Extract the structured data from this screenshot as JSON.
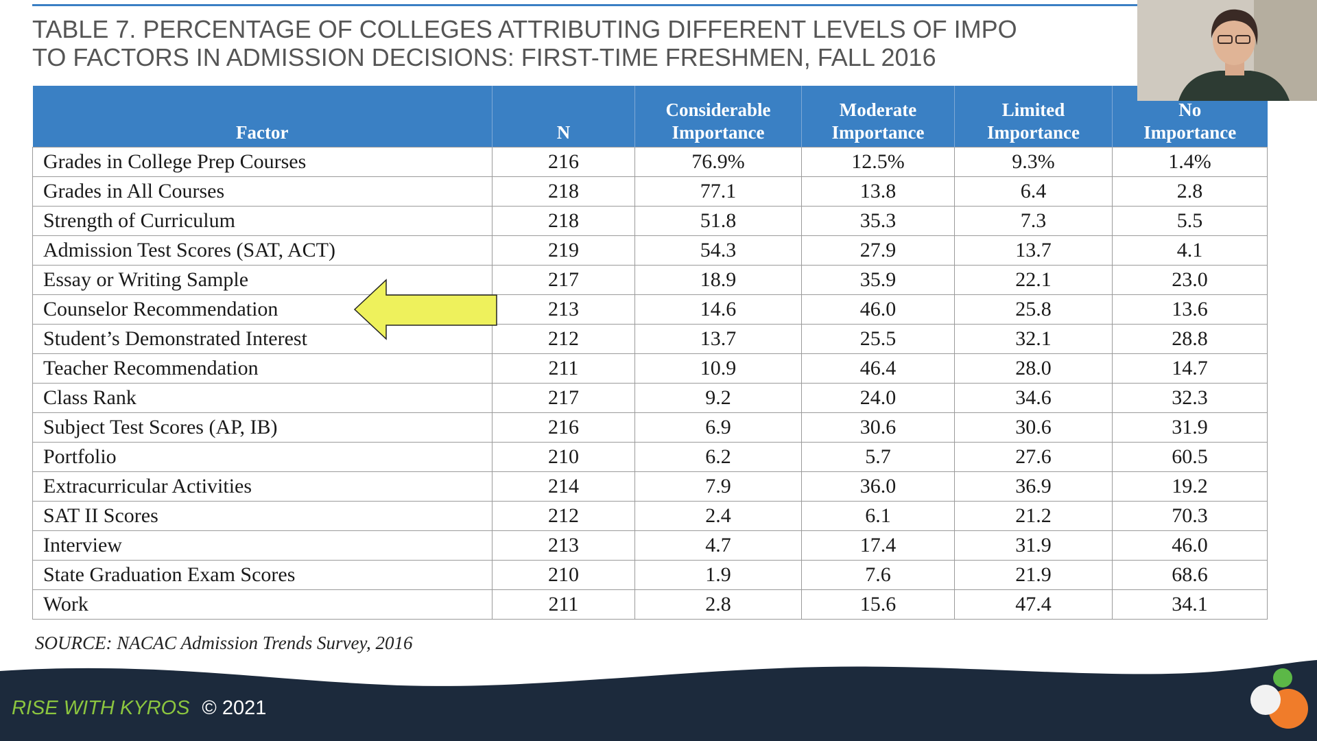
{
  "title": {
    "line1": "TABLE 7. PERCENTAGE OF COLLEGES ATTRIBUTING DIFFERENT LEVELS OF IMPO",
    "line2": "TO FACTORS IN ADMISSION DECISIONS: FIRST-TIME FRESHMEN, FALL 2016"
  },
  "table": {
    "headers": [
      {
        "line1": "",
        "line2": "Factor"
      },
      {
        "line1": "",
        "line2": "N"
      },
      {
        "line1": "Considerable",
        "line2": "Importance"
      },
      {
        "line1": "Moderate",
        "line2": "Importance"
      },
      {
        "line1": "Limited",
        "line2": "Importance"
      },
      {
        "line1": "No",
        "line2": "Importance"
      }
    ],
    "rows": [
      [
        "Grades in College Prep Courses",
        "216",
        "76.9%",
        "12.5%",
        "9.3%",
        "1.4%"
      ],
      [
        "Grades in All Courses",
        "218",
        "77.1",
        "13.8",
        "6.4",
        "2.8"
      ],
      [
        "Strength of Curriculum",
        "218",
        "51.8",
        "35.3",
        "7.3",
        "5.5"
      ],
      [
        "Admission Test Scores (SAT, ACT)",
        "219",
        "54.3",
        "27.9",
        "13.7",
        "4.1"
      ],
      [
        "Essay or Writing Sample",
        "217",
        "18.9",
        "35.9",
        "22.1",
        "23.0"
      ],
      [
        "Counselor Recommendation",
        "213",
        "14.6",
        "46.0",
        "25.8",
        "13.6"
      ],
      [
        "Student’s Demonstrated Interest",
        "212",
        "13.7",
        "25.5",
        "32.1",
        "28.8"
      ],
      [
        "Teacher Recommendation",
        "211",
        "10.9",
        "46.4",
        "28.0",
        "14.7"
      ],
      [
        "Class Rank",
        "217",
        "9.2",
        "24.0",
        "34.6",
        "32.3"
      ],
      [
        "Subject Test Scores (AP, IB)",
        "216",
        "6.9",
        "30.6",
        "30.6",
        "31.9"
      ],
      [
        "Portfolio",
        "210",
        "6.2",
        "5.7",
        "27.6",
        "60.5"
      ],
      [
        "Extracurricular Activities",
        "214",
        "7.9",
        "36.0",
        "36.9",
        "19.2"
      ],
      [
        "SAT II Scores",
        "212",
        "2.4",
        "6.1",
        "21.2",
        "70.3"
      ],
      [
        "Interview",
        "213",
        "4.7",
        "17.4",
        "31.9",
        "46.0"
      ],
      [
        "State Graduation Exam Scores",
        "210",
        "1.9",
        "7.6",
        "21.9",
        "68.6"
      ],
      [
        "Work",
        "211",
        "2.8",
        "15.6",
        "47.4",
        "34.1"
      ]
    ]
  },
  "source": "SOURCE: NACAC Admission Trends Survey, 2016",
  "footer": {
    "brand": "RISE WITH KYROS",
    "copyright": "© 2021"
  },
  "highlight": {
    "row_label": "Counselor Recommendation",
    "icon": "arrow-left-icon"
  },
  "colors": {
    "header_blue": "#3a80c4",
    "arrow_yellow": "#eef15c",
    "footer_navy": "#1c2a3c",
    "brand_green": "#8cc63f",
    "logo_orange": "#f07c2a",
    "logo_green": "#5cb847"
  }
}
